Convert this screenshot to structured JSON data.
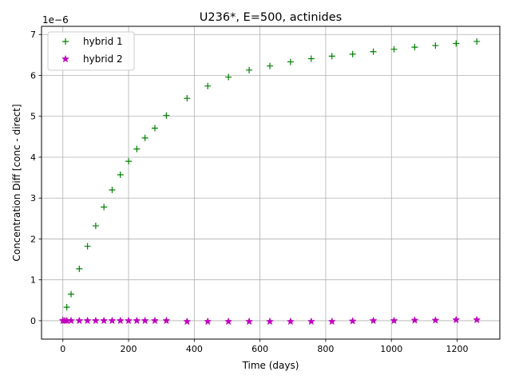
{
  "chart_data": {
    "type": "scatter",
    "title": "U236*, E=500, actinides",
    "xlabel": "Time (days)",
    "ylabel": "Concentration Diff [conc - direct]",
    "y_scale_label": "1e−6",
    "xlim": [
      -65,
      1330
    ],
    "ylim": [
      -0.45,
      7.2
    ],
    "x_ticks": [
      0,
      200,
      400,
      600,
      800,
      1000,
      1200
    ],
    "y_ticks": [
      0,
      1,
      2,
      3,
      4,
      5,
      6,
      7
    ],
    "grid": true,
    "legend_position": "upper-left",
    "series": [
      {
        "name": "hybrid 1",
        "marker": "plus",
        "color": "#008000",
        "points": [
          [
            0,
            0.02
          ],
          [
            12,
            0.33
          ],
          [
            25,
            0.65
          ],
          [
            50,
            1.27
          ],
          [
            75,
            1.82
          ],
          [
            100,
            2.32
          ],
          [
            125,
            2.78
          ],
          [
            150,
            3.2
          ],
          [
            175,
            3.57
          ],
          [
            200,
            3.9
          ],
          [
            225,
            4.2
          ],
          [
            250,
            4.47
          ],
          [
            280,
            4.71
          ],
          [
            315,
            5.02
          ],
          [
            378,
            5.44
          ],
          [
            441,
            5.74
          ],
          [
            504,
            5.96
          ],
          [
            567,
            6.13
          ],
          [
            630,
            6.23
          ],
          [
            693,
            6.33
          ],
          [
            756,
            6.41
          ],
          [
            819,
            6.47
          ],
          [
            882,
            6.52
          ],
          [
            945,
            6.58
          ],
          [
            1008,
            6.64
          ],
          [
            1071,
            6.69
          ],
          [
            1134,
            6.73
          ],
          [
            1197,
            6.78
          ],
          [
            1260,
            6.83
          ]
        ]
      },
      {
        "name": "hybrid 2",
        "marker": "star",
        "color": "#bf00bf",
        "points": [
          [
            0,
            0.0
          ],
          [
            6,
            0.0
          ],
          [
            12,
            0.0
          ],
          [
            25,
            0.0
          ],
          [
            50,
            0.0
          ],
          [
            75,
            0.0
          ],
          [
            100,
            0.0
          ],
          [
            125,
            0.0
          ],
          [
            150,
            0.0
          ],
          [
            175,
            0.0
          ],
          [
            200,
            0.0
          ],
          [
            225,
            0.0
          ],
          [
            250,
            0.0
          ],
          [
            280,
            0.0
          ],
          [
            315,
            0.0
          ],
          [
            378,
            -0.02
          ],
          [
            441,
            -0.02
          ],
          [
            504,
            -0.02
          ],
          [
            567,
            -0.02
          ],
          [
            630,
            -0.02
          ],
          [
            693,
            -0.02
          ],
          [
            756,
            -0.02
          ],
          [
            819,
            -0.02
          ],
          [
            882,
            -0.01
          ],
          [
            945,
            0.0
          ],
          [
            1008,
            0.0
          ],
          [
            1071,
            0.01
          ],
          [
            1134,
            0.01
          ],
          [
            1197,
            0.02
          ],
          [
            1260,
            0.02
          ]
        ]
      }
    ]
  }
}
